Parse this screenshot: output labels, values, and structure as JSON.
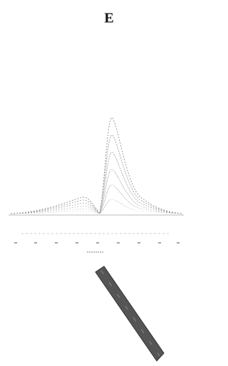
{
  "panel_label": "E"
}
